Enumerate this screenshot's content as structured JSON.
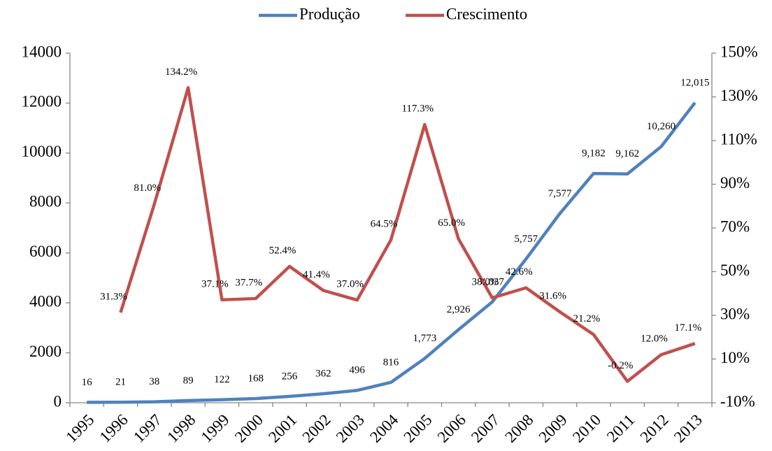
{
  "chart_data": {
    "type": "line",
    "categories": [
      "1995",
      "1996",
      "1997",
      "1998",
      "1999",
      "2000",
      "2001",
      "2002",
      "2003",
      "2004",
      "2005",
      "2006",
      "2007",
      "2008",
      "2009",
      "2010",
      "2011",
      "2012",
      "2013"
    ],
    "series": [
      {
        "name": "Produção",
        "color": "#4f81bd",
        "values": [
          16,
          21,
          38,
          89,
          122,
          168,
          256,
          362,
          496,
          816,
          1773,
          2926,
          4037,
          5757,
          7577,
          9182,
          9162,
          10260,
          12015
        ],
        "value_labels": [
          "16",
          "21",
          "38",
          "89",
          "122",
          "168",
          "256",
          "362",
          "496",
          "816",
          "1,773",
          "2,926",
          "4,037",
          "5,757",
          "7,577",
          "9,182",
          "9,162",
          "10,260",
          "12,015"
        ]
      },
      {
        "name": "Crescimento",
        "color": "#c0504d",
        "axis": "y2",
        "values": [
          null,
          31.3,
          81.0,
          134.2,
          37.1,
          37.7,
          52.4,
          41.4,
          37.0,
          64.5,
          117.3,
          65.0,
          38.0,
          42.6,
          31.6,
          21.2,
          -0.2,
          12.0,
          17.1
        ],
        "value_labels": [
          null,
          "31.3%",
          "81.0%",
          "134.2%",
          "37.1%",
          "37.7%",
          "52.4%",
          "41.4%",
          "37.0%",
          "64.5%",
          "117.3%",
          "65.0%",
          "38.0%",
          "42.6%",
          "31.6%",
          "21.2%",
          "-0.2%",
          "12.0%",
          "17.1%"
        ]
      }
    ],
    "ylim": [
      0,
      14000
    ],
    "yticks": [
      0,
      2000,
      4000,
      6000,
      8000,
      10000,
      12000,
      14000
    ],
    "y2lim": [
      -10,
      150
    ],
    "y2ticks": [
      {
        "value": -10,
        "label": "-10%"
      },
      {
        "value": 10,
        "label": "10%"
      },
      {
        "value": 30,
        "label": "30%"
      },
      {
        "value": 50,
        "label": "50%"
      },
      {
        "value": 70,
        "label": "70%"
      },
      {
        "value": 90,
        "label": "90%"
      },
      {
        "value": 110,
        "label": "110%"
      },
      {
        "value": 130,
        "label": "130%"
      },
      {
        "value": 150,
        "label": "150%"
      }
    ],
    "legend": "top"
  }
}
